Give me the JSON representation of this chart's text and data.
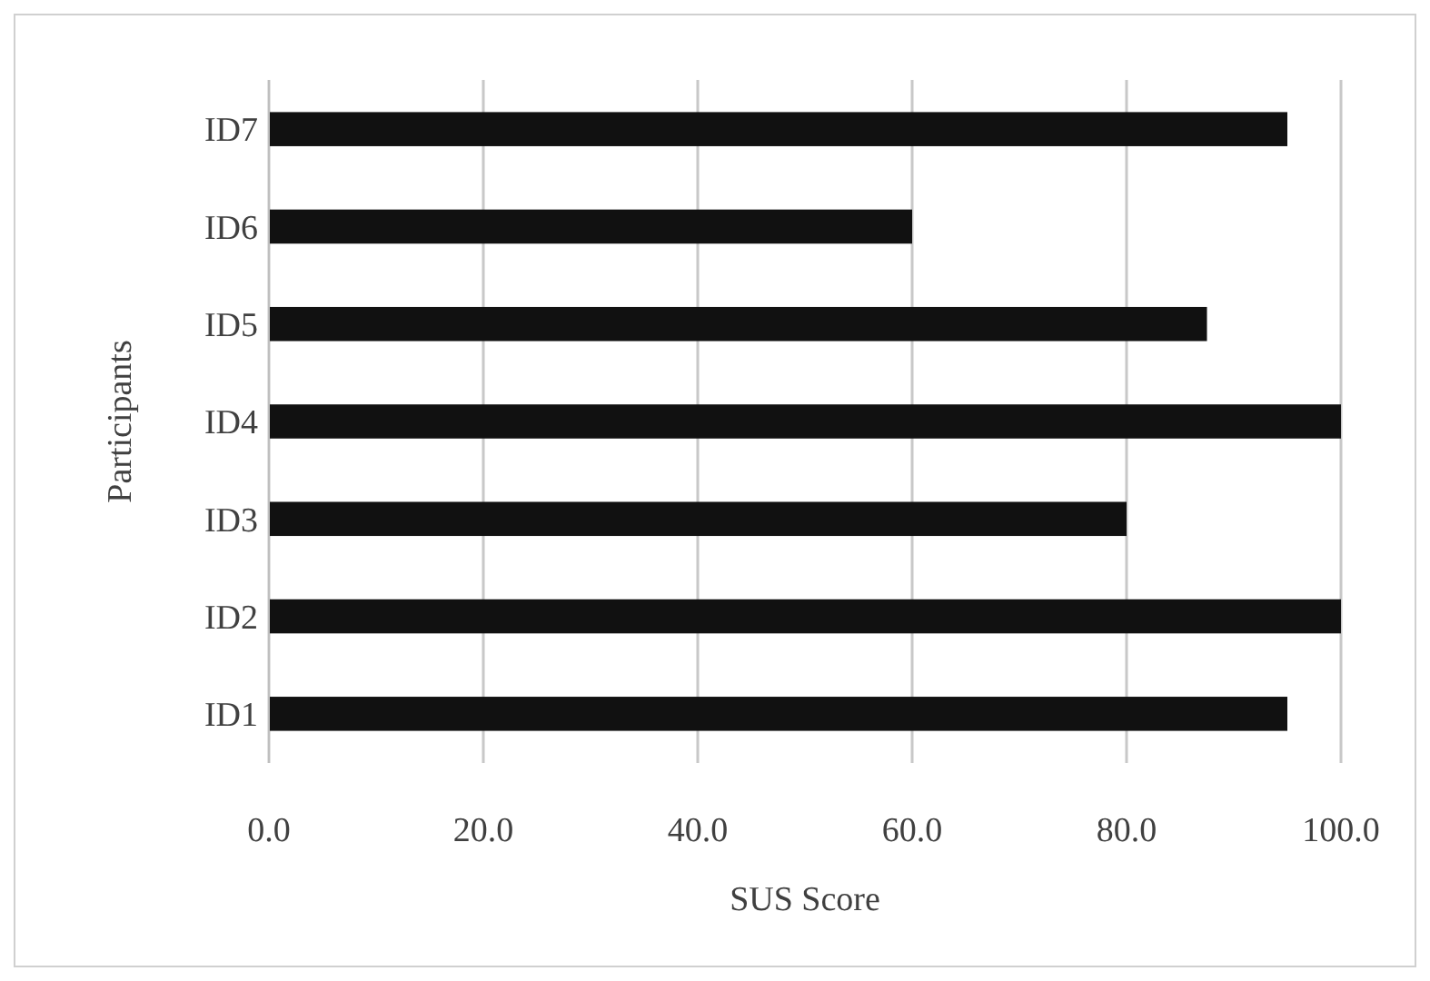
{
  "chart_data": {
    "type": "bar",
    "orientation": "horizontal",
    "xlabel": "SUS Score",
    "ylabel": "Participants",
    "categories": [
      "ID7",
      "ID6",
      "ID5",
      "ID4",
      "ID3",
      "ID2",
      "ID1"
    ],
    "values": [
      95,
      60,
      87.5,
      100,
      80,
      100,
      95
    ],
    "color": "#111111",
    "xlim": [
      0,
      100
    ],
    "xticks": [
      {
        "value": 0,
        "label": "0.0"
      },
      {
        "value": 20,
        "label": "20.0"
      },
      {
        "value": 40,
        "label": "40.0"
      },
      {
        "value": 60,
        "label": "60.0"
      },
      {
        "value": 80,
        "label": "80.0"
      },
      {
        "value": 100,
        "label": "100.0"
      }
    ],
    "grid": "x"
  }
}
